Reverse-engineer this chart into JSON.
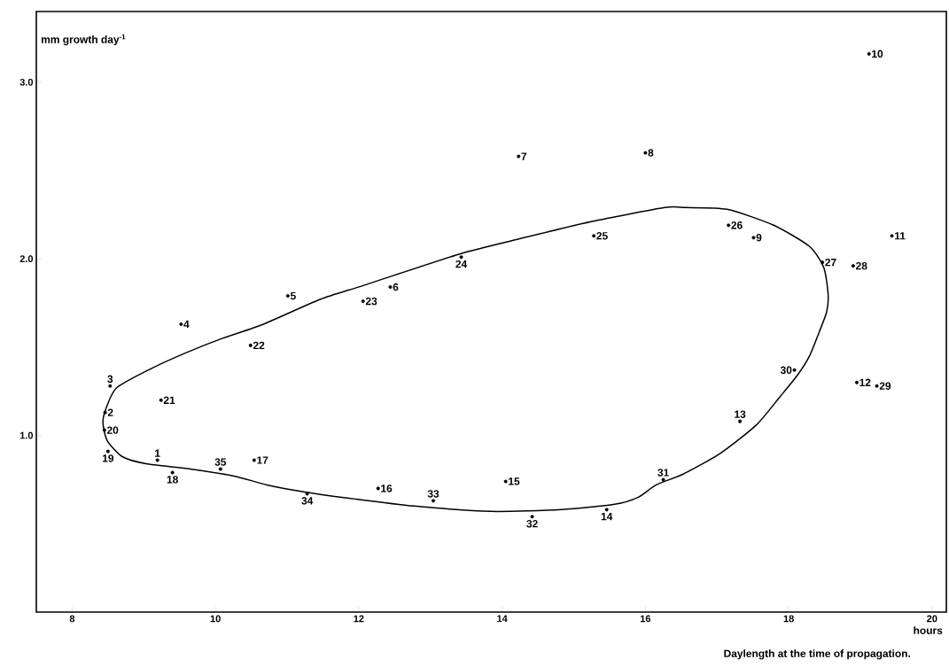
{
  "chart_data": {
    "type": "scatter",
    "xlabel": "Daylength at the time of propagation.",
    "ylabel": "mm growth day$^{-1}$",
    "xlim": [
      7.5,
      20.2
    ],
    "ylim": [
      0,
      3.4
    ],
    "xticks": [
      8,
      10,
      12,
      14,
      16,
      18,
      20
    ],
    "yticks": [
      {
        "value": 1,
        "label": "1.0"
      },
      {
        "value": 2,
        "label": "2.0"
      },
      {
        "value": 3,
        "label": "3.0"
      }
    ],
    "marker": "circle",
    "series": [
      {
        "color": "#000000",
        "x": [
          9.19,
          8.46,
          8.53,
          9.52,
          11.01,
          12.44,
          14.23,
          16.0,
          17.51,
          19.12,
          19.44,
          18.95,
          17.32,
          15.46,
          14.05,
          12.27,
          10.54,
          9.4,
          8.5,
          8.45,
          9.24,
          10.49,
          12.06,
          13.43,
          15.28,
          17.16,
          18.47,
          18.9,
          19.23,
          18.08,
          16.25,
          14.42,
          13.04,
          11.28,
          10.07
        ],
        "values": [
          0.86,
          1.13,
          1.28,
          1.63,
          1.79,
          1.84,
          2.58,
          2.6,
          2.12,
          3.16,
          2.13,
          1.3,
          1.08,
          0.58,
          0.74,
          0.7,
          0.86,
          0.79,
          0.91,
          1.03,
          1.2,
          1.51,
          1.76,
          2.01,
          2.13,
          2.19,
          1.98,
          1.96,
          1.28,
          1.37,
          0.75,
          0.54,
          0.63,
          0.67,
          0.81
        ]
      }
    ],
    "annotations": [
      {
        "text": "1",
        "x": 9.19,
        "y": 0.86
      },
      {
        "text": "2",
        "x": 8.46,
        "y": 1.13
      },
      {
        "text": "3",
        "x": 8.53,
        "y": 1.28
      },
      {
        "text": "4",
        "x": 9.52,
        "y": 1.63
      },
      {
        "text": "5",
        "x": 11.01,
        "y": 1.79
      },
      {
        "text": "6",
        "x": 12.44,
        "y": 1.84
      },
      {
        "text": "7",
        "x": 14.23,
        "y": 2.58
      },
      {
        "text": "8",
        "x": 16.0,
        "y": 2.6
      },
      {
        "text": "9",
        "x": 17.51,
        "y": 2.12
      },
      {
        "text": "10",
        "x": 19.12,
        "y": 3.16
      },
      {
        "text": "11",
        "x": 19.44,
        "y": 2.13
      },
      {
        "text": "12",
        "x": 18.95,
        "y": 1.3
      },
      {
        "text": "13",
        "x": 17.32,
        "y": 1.08
      },
      {
        "text": "14",
        "x": 15.46,
        "y": 0.58
      },
      {
        "text": "15",
        "x": 14.05,
        "y": 0.74
      },
      {
        "text": "16",
        "x": 12.27,
        "y": 0.7
      },
      {
        "text": "17",
        "x": 10.54,
        "y": 0.86
      },
      {
        "text": "18",
        "x": 9.4,
        "y": 0.79
      },
      {
        "text": "19",
        "x": 8.5,
        "y": 0.91
      },
      {
        "text": "20",
        "x": 8.45,
        "y": 1.03
      },
      {
        "text": "21",
        "x": 9.24,
        "y": 1.2
      },
      {
        "text": "22",
        "x": 10.49,
        "y": 1.51
      },
      {
        "text": "23",
        "x": 12.06,
        "y": 1.76
      },
      {
        "text": "24",
        "x": 13.43,
        "y": 2.01
      },
      {
        "text": "25",
        "x": 15.28,
        "y": 2.13
      },
      {
        "text": "26",
        "x": 17.16,
        "y": 2.19
      },
      {
        "text": "27",
        "x": 18.47,
        "y": 1.98
      },
      {
        "text": "28",
        "x": 18.9,
        "y": 1.96
      },
      {
        "text": "29",
        "x": 19.23,
        "y": 1.28
      },
      {
        "text": "30",
        "x": 18.08,
        "y": 1.37
      },
      {
        "text": "31",
        "x": 16.25,
        "y": 0.75
      },
      {
        "text": "32",
        "x": 14.42,
        "y": 0.54
      },
      {
        "text": "33",
        "x": 13.04,
        "y": 0.63
      },
      {
        "text": "34",
        "x": 11.28,
        "y": 0.67
      },
      {
        "text": "35",
        "x": 10.07,
        "y": 0.81
      },
      "hours"
    ]
  }
}
